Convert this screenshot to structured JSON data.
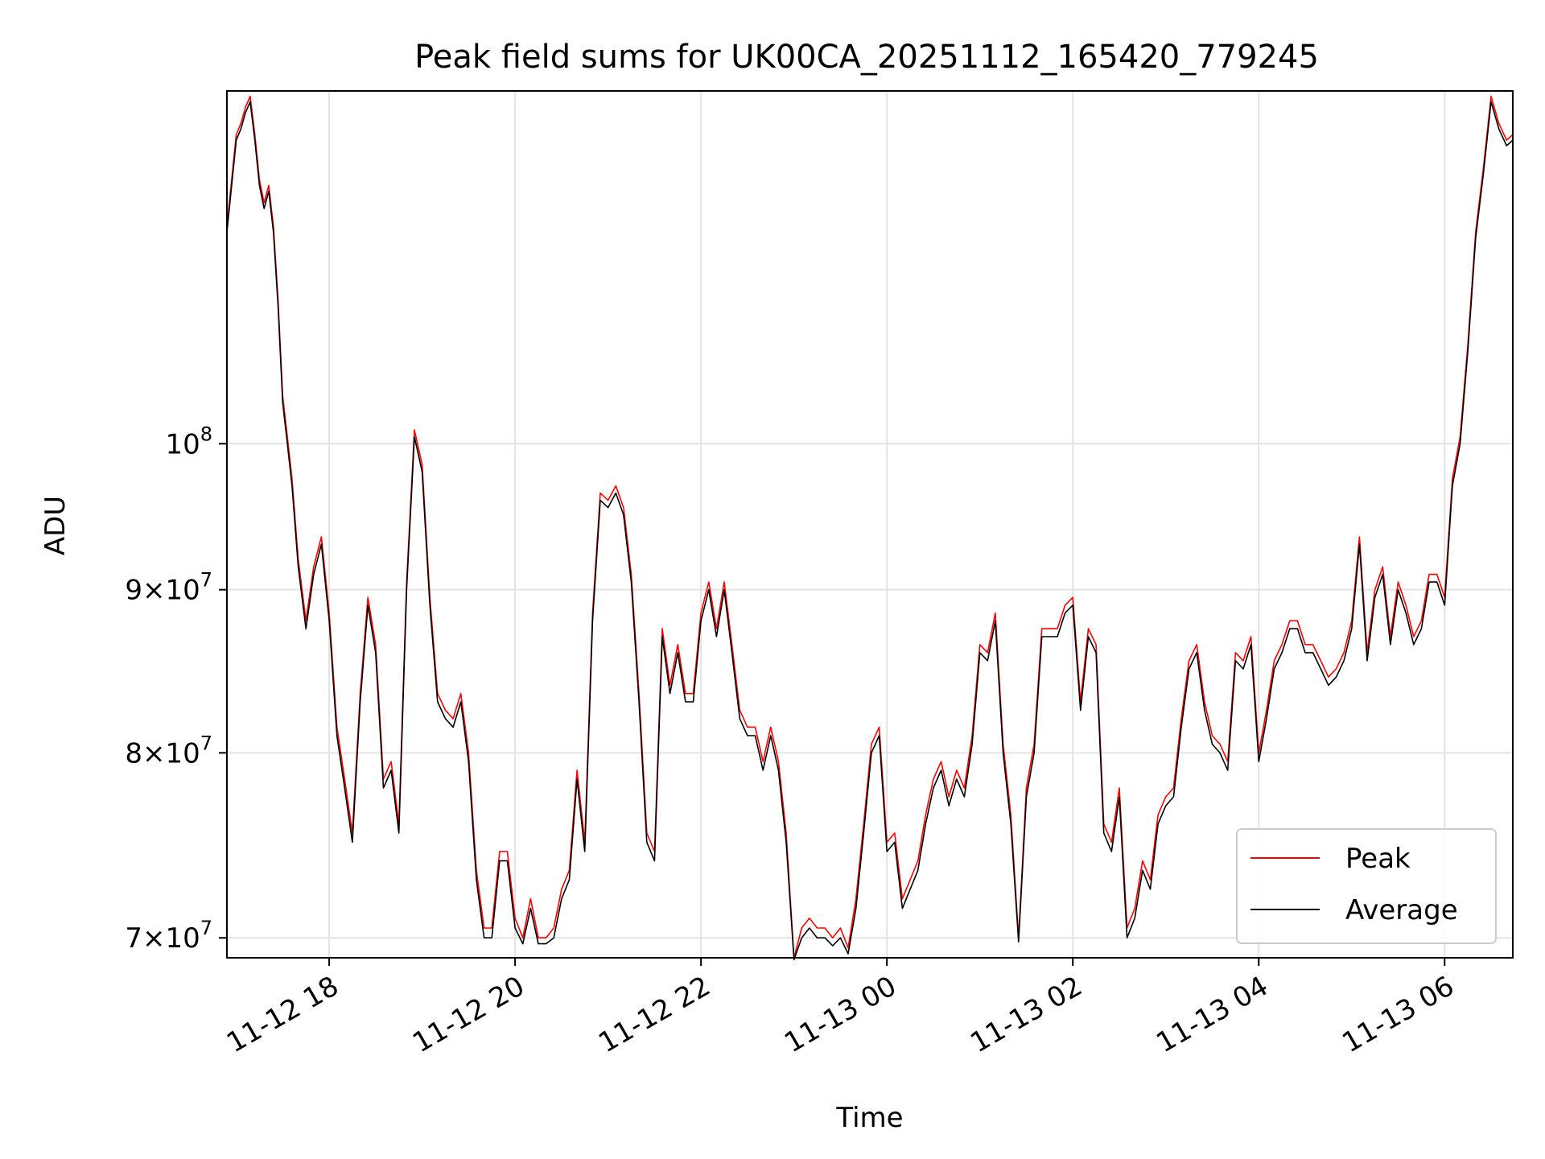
{
  "chart_data": {
    "type": "line",
    "title": "Peak field sums for UK00CA_20251112_165420_779245",
    "xlabel": "Time",
    "ylabel": "ADU",
    "y_scale": "log",
    "ylim": [
      69000000,
      129000000
    ],
    "xlim": [
      "2025-11-12T16:54",
      "2025-11-13T06:44"
    ],
    "x_ticks": [
      {
        "t": "2025-11-12T18:00",
        "label": "11-12 18"
      },
      {
        "t": "2025-11-12T20:00",
        "label": "11-12 20"
      },
      {
        "t": "2025-11-12T22:00",
        "label": "11-12 22"
      },
      {
        "t": "2025-11-13T00:00",
        "label": "11-13 00"
      },
      {
        "t": "2025-11-13T02:00",
        "label": "11-13 02"
      },
      {
        "t": "2025-11-13T04:00",
        "label": "11-13 04"
      },
      {
        "t": "2025-11-13T06:00",
        "label": "11-13 06"
      }
    ],
    "y_ticks": [
      {
        "value": 70000000,
        "base": "7×10",
        "exp": "7"
      },
      {
        "value": 80000000,
        "base": "8×10",
        "exp": "7"
      },
      {
        "value": 90000000,
        "base": "9×10",
        "exp": "7"
      },
      {
        "value": 100000000,
        "base": "10",
        "exp": "8"
      }
    ],
    "grid": true,
    "legend_position": "bottom-right",
    "x": [
      "2025-11-12T16:54",
      "2025-11-12T17:00",
      "2025-11-12T17:03",
      "2025-11-12T17:06",
      "2025-11-12T17:09",
      "2025-11-12T17:12",
      "2025-11-12T17:15",
      "2025-11-12T17:18",
      "2025-11-12T17:21",
      "2025-11-12T17:24",
      "2025-11-12T17:27",
      "2025-11-12T17:30",
      "2025-11-12T17:33",
      "2025-11-12T17:36",
      "2025-11-12T17:40",
      "2025-11-12T17:45",
      "2025-11-12T17:50",
      "2025-11-12T17:55",
      "2025-11-12T18:00",
      "2025-11-12T18:05",
      "2025-11-12T18:10",
      "2025-11-12T18:15",
      "2025-11-12T18:20",
      "2025-11-12T18:25",
      "2025-11-12T18:30",
      "2025-11-12T18:35",
      "2025-11-12T18:40",
      "2025-11-12T18:45",
      "2025-11-12T18:50",
      "2025-11-12T18:55",
      "2025-11-12T19:00",
      "2025-11-12T19:05",
      "2025-11-12T19:10",
      "2025-11-12T19:15",
      "2025-11-12T19:20",
      "2025-11-12T19:25",
      "2025-11-12T19:30",
      "2025-11-12T19:35",
      "2025-11-12T19:40",
      "2025-11-12T19:45",
      "2025-11-12T19:50",
      "2025-11-12T19:55",
      "2025-11-12T20:00",
      "2025-11-12T20:05",
      "2025-11-12T20:10",
      "2025-11-12T20:15",
      "2025-11-12T20:20",
      "2025-11-12T20:25",
      "2025-11-12T20:30",
      "2025-11-12T20:35",
      "2025-11-12T20:40",
      "2025-11-12T20:45",
      "2025-11-12T20:50",
      "2025-11-12T20:55",
      "2025-11-12T21:00",
      "2025-11-12T21:05",
      "2025-11-12T21:10",
      "2025-11-12T21:15",
      "2025-11-12T21:20",
      "2025-11-12T21:25",
      "2025-11-12T21:30",
      "2025-11-12T21:35",
      "2025-11-12T21:40",
      "2025-11-12T21:45",
      "2025-11-12T21:50",
      "2025-11-12T21:55",
      "2025-11-12T22:00",
      "2025-11-12T22:05",
      "2025-11-12T22:10",
      "2025-11-12T22:15",
      "2025-11-12T22:20",
      "2025-11-12T22:25",
      "2025-11-12T22:30",
      "2025-11-12T22:35",
      "2025-11-12T22:40",
      "2025-11-12T22:45",
      "2025-11-12T22:50",
      "2025-11-12T22:55",
      "2025-11-12T23:00",
      "2025-11-12T23:05",
      "2025-11-12T23:10",
      "2025-11-12T23:15",
      "2025-11-12T23:20",
      "2025-11-12T23:25",
      "2025-11-12T23:30",
      "2025-11-12T23:35",
      "2025-11-12T23:40",
      "2025-11-12T23:45",
      "2025-11-12T23:50",
      "2025-11-12T23:55",
      "2025-11-13T00:00",
      "2025-11-13T00:05",
      "2025-11-13T00:10",
      "2025-11-13T00:15",
      "2025-11-13T00:20",
      "2025-11-13T00:25",
      "2025-11-13T00:30",
      "2025-11-13T00:35",
      "2025-11-13T00:40",
      "2025-11-13T00:45",
      "2025-11-13T00:50",
      "2025-11-13T00:55",
      "2025-11-13T01:00",
      "2025-11-13T01:05",
      "2025-11-13T01:10",
      "2025-11-13T01:15",
      "2025-11-13T01:20",
      "2025-11-13T01:25",
      "2025-11-13T01:30",
      "2025-11-13T01:35",
      "2025-11-13T01:40",
      "2025-11-13T01:45",
      "2025-11-13T01:50",
      "2025-11-13T01:55",
      "2025-11-13T02:00",
      "2025-11-13T02:05",
      "2025-11-13T02:10",
      "2025-11-13T02:15",
      "2025-11-13T02:20",
      "2025-11-13T02:25",
      "2025-11-13T02:30",
      "2025-11-13T02:35",
      "2025-11-13T02:40",
      "2025-11-13T02:45",
      "2025-11-13T02:50",
      "2025-11-13T02:55",
      "2025-11-13T03:00",
      "2025-11-13T03:05",
      "2025-11-13T03:10",
      "2025-11-13T03:15",
      "2025-11-13T03:20",
      "2025-11-13T03:25",
      "2025-11-13T03:30",
      "2025-11-13T03:35",
      "2025-11-13T03:40",
      "2025-11-13T03:45",
      "2025-11-13T03:50",
      "2025-11-13T03:55",
      "2025-11-13T04:00",
      "2025-11-13T04:05",
      "2025-11-13T04:10",
      "2025-11-13T04:15",
      "2025-11-13T04:20",
      "2025-11-13T04:25",
      "2025-11-13T04:30",
      "2025-11-13T04:35",
      "2025-11-13T04:40",
      "2025-11-13T04:45",
      "2025-11-13T04:50",
      "2025-11-13T04:55",
      "2025-11-13T05:00",
      "2025-11-13T05:05",
      "2025-11-13T05:10",
      "2025-11-13T05:15",
      "2025-11-13T05:20",
      "2025-11-13T05:25",
      "2025-11-13T05:30",
      "2025-11-13T05:35",
      "2025-11-13T05:40",
      "2025-11-13T05:45",
      "2025-11-13T05:50",
      "2025-11-13T05:55",
      "2025-11-13T06:00",
      "2025-11-13T06:05",
      "2025-11-13T06:10",
      "2025-11-13T06:15",
      "2025-11-13T06:20",
      "2025-11-13T06:25",
      "2025-11-13T06:30",
      "2025-11-13T06:35",
      "2025-11-13T06:40",
      "2025-11-13T06:44"
    ],
    "series": [
      {
        "name": "Peak",
        "color": "#ff0000",
        "values": [
          117000000,
          125000000,
          126000000,
          127500000,
          128500000,
          125000000,
          121000000,
          119000000,
          120500000,
          117000000,
          111000000,
          103500000,
          100500000,
          97500000,
          92000000,
          88000000,
          91500000,
          93500000,
          88500000,
          81500000,
          78500000,
          75500000,
          83500000,
          89500000,
          86500000,
          78500000,
          79500000,
          76000000,
          90500000,
          101000000,
          98500000,
          89500000,
          83500000,
          82500000,
          82000000,
          83500000,
          80000000,
          73500000,
          70500000,
          70500000,
          74500000,
          74500000,
          71000000,
          70000000,
          72000000,
          70000000,
          70000000,
          70500000,
          72500000,
          73500000,
          79000000,
          75000000,
          88500000,
          96500000,
          96000000,
          97000000,
          95500000,
          91000000,
          83500000,
          75500000,
          74500000,
          87500000,
          84000000,
          86500000,
          83500000,
          83500000,
          88500000,
          90500000,
          87500000,
          90500000,
          86500000,
          82500000,
          81500000,
          81500000,
          79500000,
          81500000,
          79500000,
          75500000,
          69000000,
          70500000,
          71000000,
          70500000,
          70500000,
          70000000,
          70500000,
          69500000,
          72000000,
          76000000,
          80500000,
          81500000,
          75000000,
          75500000,
          72000000,
          73000000,
          74000000,
          76500000,
          78500000,
          79500000,
          77500000,
          79000000,
          78000000,
          81000000,
          86500000,
          86000000,
          88500000,
          80500000,
          76500000,
          70000000,
          78000000,
          80500000,
          87500000,
          87500000,
          87500000,
          89000000,
          89500000,
          83000000,
          87500000,
          86500000,
          76000000,
          75000000,
          78000000,
          70500000,
          71500000,
          74000000,
          73000000,
          76500000,
          77500000,
          78000000,
          82000000,
          85500000,
          86500000,
          83000000,
          81000000,
          80500000,
          79500000,
          86000000,
          85500000,
          87000000,
          80000000,
          82500000,
          85500000,
          86500000,
          88000000,
          88000000,
          86500000,
          86500000,
          85500000,
          84500000,
          85000000,
          86000000,
          88000000,
          93500000,
          86000000,
          90000000,
          91500000,
          87000000,
          90500000,
          89000000,
          87000000,
          88000000,
          91000000,
          91000000,
          89500000,
          97500000,
          100500000,
          107500000,
          116500000,
          122000000,
          128500000,
          126000000,
          124500000,
          125000000
        ]
      },
      {
        "name": "Average",
        "color": "#000000",
        "values": [
          116500000,
          124500000,
          125500000,
          127000000,
          128000000,
          124500000,
          120500000,
          118500000,
          120000000,
          116500000,
          110500000,
          103000000,
          100000000,
          97000000,
          91500000,
          87500000,
          91000000,
          93000000,
          88000000,
          81000000,
          78000000,
          75000000,
          83000000,
          89000000,
          86000000,
          78000000,
          79000000,
          75500000,
          90000000,
          100500000,
          98000000,
          89000000,
          83000000,
          82000000,
          81500000,
          83000000,
          79500000,
          73000000,
          70000000,
          70000000,
          74000000,
          74000000,
          70500000,
          69700000,
          71500000,
          69700000,
          69700000,
          70000000,
          72000000,
          73000000,
          78500000,
          74500000,
          88000000,
          96000000,
          95500000,
          96500000,
          95000000,
          90500000,
          83000000,
          75000000,
          74000000,
          87000000,
          83500000,
          86000000,
          83000000,
          83000000,
          88000000,
          90000000,
          87000000,
          90000000,
          86000000,
          82000000,
          81000000,
          81000000,
          79000000,
          81000000,
          79000000,
          75000000,
          68900000,
          70000000,
          70500000,
          70000000,
          70000000,
          69600000,
          70000000,
          69200000,
          71500000,
          75500000,
          80000000,
          81000000,
          74500000,
          75000000,
          71500000,
          72500000,
          73500000,
          76000000,
          78000000,
          79000000,
          77000000,
          78500000,
          77500000,
          80500000,
          86000000,
          85500000,
          88000000,
          80000000,
          76000000,
          69800000,
          77500000,
          80000000,
          87000000,
          87000000,
          87000000,
          88500000,
          89000000,
          82500000,
          87000000,
          86000000,
          75500000,
          74500000,
          77500000,
          70000000,
          71000000,
          73500000,
          72500000,
          76000000,
          77000000,
          77500000,
          81500000,
          85000000,
          86000000,
          82500000,
          80500000,
          80000000,
          79000000,
          85500000,
          85000000,
          86500000,
          79500000,
          82000000,
          85000000,
          86000000,
          87500000,
          87500000,
          86000000,
          86000000,
          85000000,
          84000000,
          84500000,
          85500000,
          87500000,
          93000000,
          85500000,
          89500000,
          91000000,
          86500000,
          90000000,
          88500000,
          86500000,
          87500000,
          90500000,
          90500000,
          89000000,
          97000000,
          100000000,
          107000000,
          116000000,
          121500000,
          128000000,
          125500000,
          124000000,
          124500000
        ]
      }
    ]
  }
}
